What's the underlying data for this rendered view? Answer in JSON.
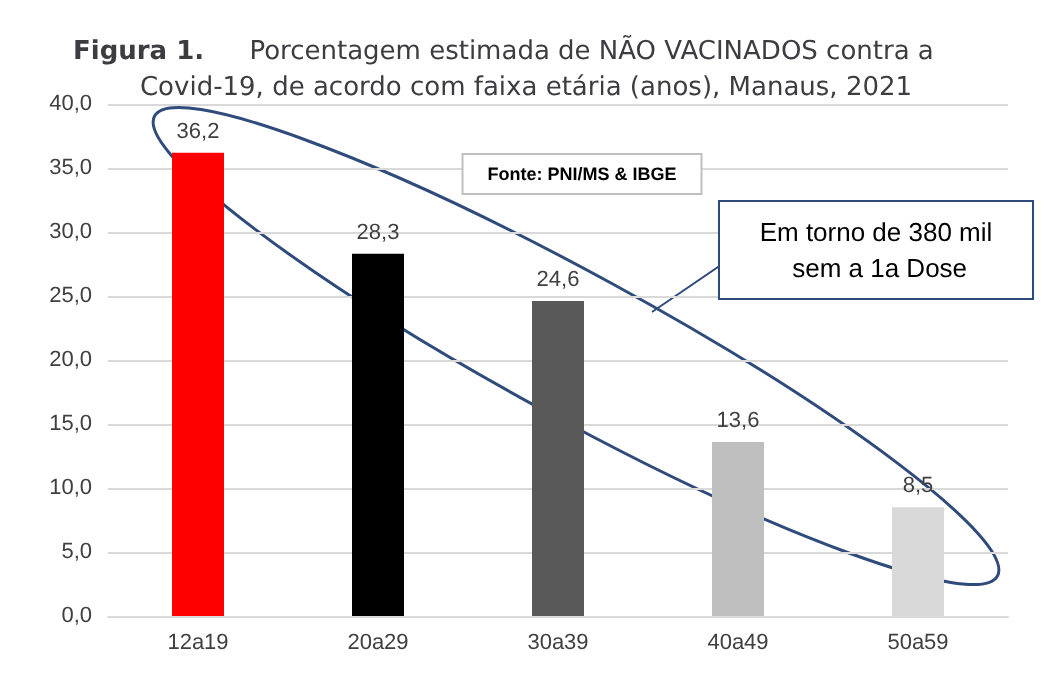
{
  "chart_data": {
    "type": "bar",
    "title": "Figura 1. Porcentagem estimada de NÃO VACINADOS contra a Covid-19, de acordo com faixa etária (anos), Manaus, 2021",
    "categories": [
      "12a19",
      "20a29",
      "30a39",
      "40a49",
      "50a59"
    ],
    "values": [
      36.2,
      28.3,
      24.6,
      13.6,
      8.5
    ],
    "colors": [
      "#ff0000",
      "#000000",
      "#595959",
      "#bfbfbf",
      "#d9d9d9"
    ],
    "value_labels": [
      "36,2",
      "28,3",
      "24,6",
      "13,6",
      "8,5"
    ],
    "ylim": [
      0,
      40
    ],
    "yticks": [
      {
        "value": 0,
        "label": "0,0"
      },
      {
        "value": 5,
        "label": "5,0"
      },
      {
        "value": 10,
        "label": "10,0"
      },
      {
        "value": 15,
        "label": "15,0"
      },
      {
        "value": 20,
        "label": "20,0"
      },
      {
        "value": 25,
        "label": "25,0"
      },
      {
        "value": 30,
        "label": "30,0"
      },
      {
        "value": 35,
        "label": "35,0"
      },
      {
        "value": 40,
        "label": "40,0"
      }
    ],
    "grid": "y",
    "annotations": [
      "Fonte: PNI/MS & IBGE",
      "Em torno de 380 mil sem a 1a Dose"
    ]
  }
}
